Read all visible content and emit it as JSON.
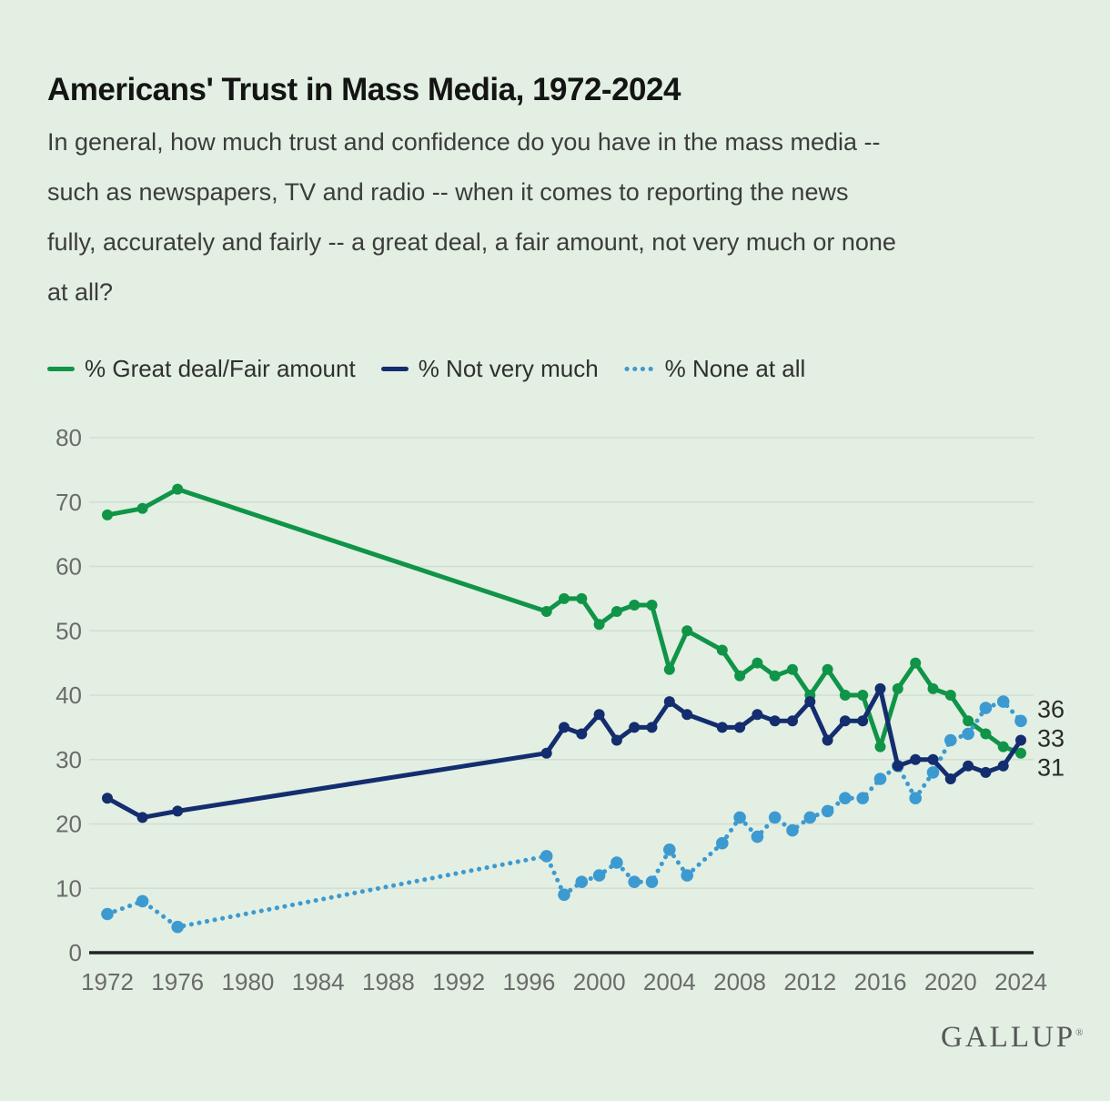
{
  "page": {
    "background_color": "#e2efe2"
  },
  "header": {
    "title": "Americans' Trust in Mass Media, 1972-2024",
    "subtitle_lines": [
      "In general, how much trust and confidence do you have in the mass media --",
      "such as newspapers, TV and radio -- when it comes to reporting the news",
      "fully, accurately and fairly -- a great deal, a fair amount, not very much or none",
      "at all?"
    ]
  },
  "legend": {
    "items": [
      {
        "label": "% Great deal/Fair amount",
        "color": "#109448",
        "line_style": "solid"
      },
      {
        "label": "% Not very much",
        "color": "#142d6e",
        "line_style": "solid"
      },
      {
        "label": "% None at all",
        "color": "#3d9ad1",
        "line_style": "dotted"
      }
    ]
  },
  "chart_data": {
    "type": "line",
    "title": "Americans' Trust in Mass Media, 1972-2024",
    "x_years": [
      1972,
      1974,
      1976,
      1997,
      1998,
      1999,
      2000,
      2001,
      2002,
      2003,
      2004,
      2005,
      2007,
      2008,
      2009,
      2010,
      2011,
      2012,
      2013,
      2014,
      2015,
      2016,
      2017,
      2018,
      2019,
      2020,
      2021,
      2022,
      2023,
      2024
    ],
    "series": [
      {
        "name": "% Great deal/Fair amount",
        "color": "#109448",
        "style": "solid",
        "values": [
          68,
          69,
          72,
          53,
          55,
          55,
          51,
          53,
          54,
          54,
          44,
          50,
          47,
          43,
          45,
          43,
          44,
          40,
          44,
          40,
          40,
          32,
          41,
          45,
          41,
          40,
          36,
          34,
          32,
          31
        ],
        "end_label": "31"
      },
      {
        "name": "% Not very much",
        "color": "#142d6e",
        "style": "solid",
        "values": [
          24,
          21,
          22,
          31,
          35,
          34,
          37,
          33,
          35,
          35,
          39,
          37,
          35,
          35,
          37,
          36,
          36,
          39,
          33,
          36,
          36,
          41,
          29,
          30,
          30,
          27,
          29,
          28,
          29,
          33
        ],
        "end_label": "33"
      },
      {
        "name": "% None at all",
        "color": "#3d9ad1",
        "style": "dotted",
        "values": [
          6,
          8,
          4,
          15,
          9,
          11,
          12,
          14,
          11,
          11,
          16,
          12,
          17,
          21,
          18,
          21,
          19,
          21,
          22,
          24,
          24,
          27,
          29,
          24,
          28,
          33,
          34,
          38,
          39,
          36
        ],
        "end_label": "36"
      }
    ],
    "ylim": [
      0,
      80
    ],
    "yticks": [
      0,
      10,
      20,
      30,
      40,
      50,
      60,
      70,
      80
    ],
    "xticks": [
      1972,
      1976,
      1980,
      1984,
      1988,
      1992,
      1996,
      2000,
      2004,
      2008,
      2012,
      2016,
      2020,
      2024
    ],
    "grid": true,
    "legend_position": "top",
    "colors": {
      "grid_line": "#d3ded3",
      "axis_line": "#222222",
      "tick_label": "#6b6b6b",
      "end_label": "#2a2a2a"
    }
  },
  "footer": {
    "logo_text": "GALLUP",
    "registered_mark": "®"
  }
}
